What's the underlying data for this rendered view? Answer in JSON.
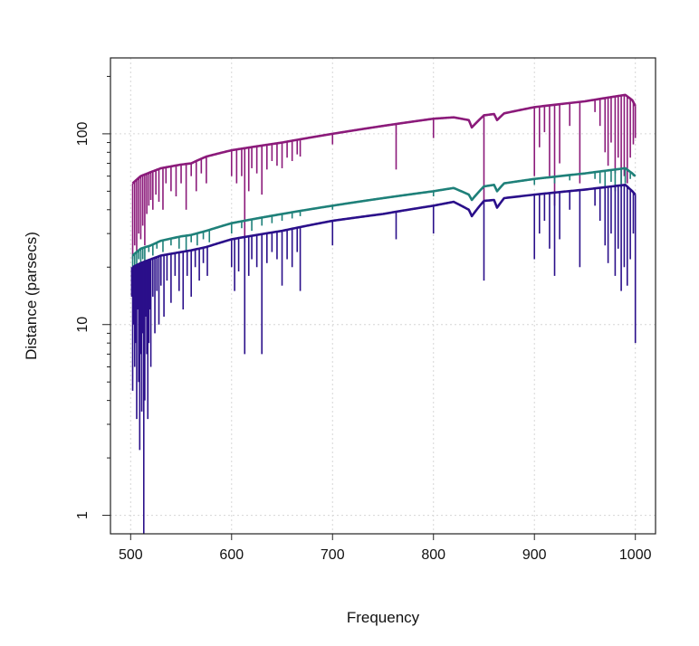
{
  "chart_data": {
    "type": "line",
    "title": "",
    "xlabel": "Frequency",
    "ylabel": "Distance (parsecs)",
    "x_scale": "linear",
    "y_scale": "log",
    "xlim": [
      480,
      1020
    ],
    "ylim": [
      0.8,
      250
    ],
    "xticks": [
      500,
      600,
      700,
      800,
      900,
      1000
    ],
    "yticks_major": [
      1,
      10,
      100
    ],
    "yticks_minor": [
      2,
      3,
      4,
      5,
      6,
      7,
      8,
      9,
      20,
      30,
      40,
      50,
      60,
      70,
      80,
      90,
      200
    ],
    "grid": true,
    "legend": "none",
    "series": [
      {
        "color": "#8b1a7a",
        "envelope": {
          "x": [
            502,
            510,
            520,
            530,
            550,
            560,
            575,
            600,
            650,
            700,
            750,
            800,
            820,
            835,
            838,
            850,
            860,
            863,
            870,
            900,
            950,
            990,
            997,
            1000
          ],
          "y": [
            55,
            60,
            63,
            66,
            69,
            70,
            76,
            82,
            90,
            100,
            110,
            120,
            122,
            118,
            108,
            125,
            127,
            118,
            128,
            138,
            148,
            160,
            150,
            140
          ]
        },
        "dips": [
          [
            502,
            22
          ],
          [
            504,
            26
          ],
          [
            506,
            24
          ],
          [
            508,
            30
          ],
          [
            510,
            28
          ],
          [
            512,
            33
          ],
          [
            514,
            26
          ],
          [
            516,
            38
          ],
          [
            518,
            42
          ],
          [
            520,
            45
          ],
          [
            522,
            40
          ],
          [
            525,
            48
          ],
          [
            528,
            44
          ],
          [
            532,
            40
          ],
          [
            535,
            55
          ],
          [
            540,
            50
          ],
          [
            545,
            47
          ],
          [
            550,
            55
          ],
          [
            555,
            40
          ],
          [
            560,
            60
          ],
          [
            565,
            50
          ],
          [
            570,
            62
          ],
          [
            575,
            55
          ],
          [
            600,
            60
          ],
          [
            605,
            55
          ],
          [
            610,
            60
          ],
          [
            613,
            27
          ],
          [
            617,
            50
          ],
          [
            620,
            66
          ],
          [
            625,
            62
          ],
          [
            630,
            48
          ],
          [
            635,
            65
          ],
          [
            640,
            72
          ],
          [
            645,
            68
          ],
          [
            650,
            66
          ],
          [
            655,
            75
          ],
          [
            660,
            72
          ],
          [
            665,
            78
          ],
          [
            668,
            76
          ],
          [
            700,
            88
          ],
          [
            763,
            65
          ],
          [
            800,
            95
          ],
          [
            850,
            45
          ],
          [
            900,
            60
          ],
          [
            905,
            85
          ],
          [
            910,
            102
          ],
          [
            915,
            60
          ],
          [
            920,
            42
          ],
          [
            925,
            70
          ],
          [
            935,
            110
          ],
          [
            945,
            55
          ],
          [
            960,
            130
          ],
          [
            965,
            110
          ],
          [
            970,
            80
          ],
          [
            973,
            68
          ],
          [
            976,
            90
          ],
          [
            980,
            62
          ],
          [
            983,
            75
          ],
          [
            986,
            55
          ],
          [
            989,
            60
          ],
          [
            992,
            55
          ],
          [
            995,
            75
          ],
          [
            998,
            88
          ],
          [
            1000,
            95
          ]
        ]
      },
      {
        "color": "#1e8079",
        "envelope": {
          "x": [
            502,
            510,
            520,
            530,
            550,
            560,
            575,
            600,
            650,
            700,
            750,
            800,
            820,
            835,
            838,
            850,
            860,
            863,
            870,
            900,
            950,
            990,
            997,
            1000
          ],
          "y": [
            23,
            25,
            26,
            27.5,
            29,
            29.5,
            31,
            34,
            38,
            42,
            46,
            50,
            52,
            48,
            45,
            53,
            54,
            50,
            55,
            58,
            62,
            66,
            62,
            60
          ]
        },
        "dips": [
          [
            502,
            18
          ],
          [
            504,
            20
          ],
          [
            506,
            19
          ],
          [
            508,
            22
          ],
          [
            510,
            21
          ],
          [
            512,
            22
          ],
          [
            514,
            20
          ],
          [
            518,
            24
          ],
          [
            522,
            23
          ],
          [
            526,
            25
          ],
          [
            532,
            24
          ],
          [
            540,
            26
          ],
          [
            548,
            25
          ],
          [
            555,
            24
          ],
          [
            560,
            27
          ],
          [
            566,
            26
          ],
          [
            572,
            28
          ],
          [
            578,
            27
          ],
          [
            600,
            30
          ],
          [
            610,
            32
          ],
          [
            620,
            31
          ],
          [
            630,
            33
          ],
          [
            640,
            34
          ],
          [
            650,
            35
          ],
          [
            660,
            36
          ],
          [
            668,
            37
          ],
          [
            700,
            40
          ],
          [
            800,
            47
          ],
          [
            900,
            54
          ],
          [
            920,
            55
          ],
          [
            935,
            57
          ],
          [
            960,
            58
          ],
          [
            965,
            55
          ],
          [
            970,
            52
          ],
          [
            976,
            56
          ],
          [
            980,
            50
          ],
          [
            986,
            52
          ],
          [
            990,
            55
          ],
          [
            995,
            58
          ],
          [
            998,
            60
          ]
        ]
      },
      {
        "color": "#2a0f8a",
        "envelope": {
          "x": [
            502,
            510,
            520,
            530,
            550,
            560,
            575,
            600,
            650,
            700,
            750,
            800,
            820,
            835,
            838,
            850,
            860,
            863,
            870,
            900,
            950,
            990,
            997,
            1000
          ],
          "y": [
            20,
            21,
            22,
            23,
            24,
            24.5,
            25.5,
            28,
            31,
            35,
            38,
            42,
            44,
            40,
            37,
            44.5,
            45,
            41,
            46,
            48,
            51,
            54,
            50,
            48
          ]
        },
        "dips": [
          [
            501,
            14
          ],
          [
            502,
            4.5
          ],
          [
            503,
            10
          ],
          [
            504,
            6
          ],
          [
            505,
            8
          ],
          [
            506,
            3.2
          ],
          [
            507,
            12
          ],
          [
            508,
            5
          ],
          [
            509,
            2.2
          ],
          [
            510,
            7
          ],
          [
            511,
            3.5
          ],
          [
            512,
            9
          ],
          [
            513,
            0.8
          ],
          [
            514,
            4
          ],
          [
            515,
            11
          ],
          [
            516,
            7
          ],
          [
            517,
            3.2
          ],
          [
            518,
            8
          ],
          [
            519,
            12
          ],
          [
            520,
            6
          ],
          [
            522,
            14
          ],
          [
            524,
            9
          ],
          [
            526,
            15
          ],
          [
            528,
            10
          ],
          [
            530,
            16
          ],
          [
            533,
            11
          ],
          [
            536,
            17
          ],
          [
            540,
            13
          ],
          [
            544,
            18
          ],
          [
            548,
            15
          ],
          [
            552,
            12
          ],
          [
            556,
            18
          ],
          [
            560,
            14
          ],
          [
            564,
            20
          ],
          [
            568,
            17
          ],
          [
            572,
            21
          ],
          [
            576,
            18
          ],
          [
            600,
            20
          ],
          [
            603,
            15
          ],
          [
            607,
            19
          ],
          [
            613,
            7
          ],
          [
            617,
            18
          ],
          [
            620,
            22
          ],
          [
            625,
            20
          ],
          [
            630,
            7
          ],
          [
            635,
            21
          ],
          [
            640,
            24
          ],
          [
            645,
            22
          ],
          [
            650,
            16
          ],
          [
            655,
            22
          ],
          [
            660,
            20
          ],
          [
            665,
            24
          ],
          [
            668,
            15
          ],
          [
            700,
            26
          ],
          [
            763,
            28
          ],
          [
            800,
            30
          ],
          [
            850,
            17
          ],
          [
            900,
            22
          ],
          [
            905,
            30
          ],
          [
            910,
            35
          ],
          [
            915,
            25
          ],
          [
            920,
            18
          ],
          [
            925,
            28
          ],
          [
            935,
            40
          ],
          [
            945,
            20
          ],
          [
            960,
            42
          ],
          [
            965,
            35
          ],
          [
            970,
            26
          ],
          [
            973,
            21
          ],
          [
            976,
            30
          ],
          [
            980,
            18
          ],
          [
            983,
            25
          ],
          [
            986,
            15
          ],
          [
            989,
            20
          ],
          [
            992,
            16
          ],
          [
            995,
            22
          ],
          [
            998,
            30
          ],
          [
            1000,
            8
          ]
        ]
      }
    ]
  }
}
